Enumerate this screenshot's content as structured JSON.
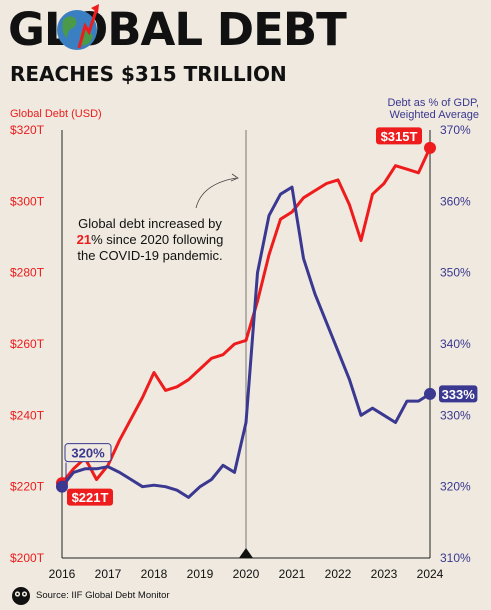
{
  "header": {
    "title": "GLOBAL DEBT",
    "subtitle": "REACHES $315 TRILLION"
  },
  "source": "Source: IIF Global Debt Monitor",
  "colors": {
    "debt": "#ee1c1c",
    "ratio": "#3a3890",
    "background": "#efe9df"
  },
  "annotation": {
    "lines": [
      "Global debt increased by",
      "% since 2020 following",
      "the COVID-19 pandemic."
    ],
    "highlight": "21"
  },
  "chart_data": {
    "type": "line",
    "ylabel_left": "Global Debt (USD)",
    "ylabel_right": [
      "Debt as % of GDP,",
      "Weighted Average"
    ],
    "x_ticks": [
      "2016",
      "2017",
      "2018",
      "2019",
      "2020",
      "2021",
      "2022",
      "2023",
      "2024"
    ],
    "x_range": [
      2016,
      2024
    ],
    "ylim_left": [
      200,
      320
    ],
    "ylim_right": [
      310,
      370
    ],
    "y_ticks_left": [
      "$200T",
      "$220T",
      "$240T",
      "$260T",
      "$280T",
      "$300T",
      "$320T"
    ],
    "y_ticks_right": [
      "310%",
      "320%",
      "330%",
      "340%",
      "350%",
      "360%",
      "370%"
    ],
    "grid": false,
    "reference_line_x": 2020,
    "series": [
      {
        "axis": "left",
        "color": "#ee1c1c",
        "x": [
          2016,
          2016.25,
          2016.5,
          2016.75,
          2017,
          2017.25,
          2017.5,
          2017.75,
          2018,
          2018.25,
          2018.5,
          2018.75,
          2019,
          2019.25,
          2019.5,
          2019.75,
          2020,
          2020.25,
          2020.5,
          2020.75,
          2021,
          2021.25,
          2021.5,
          2021.75,
          2022,
          2022.25,
          2022.5,
          2022.75,
          2023,
          2023.25,
          2023.5,
          2023.75,
          2024
        ],
        "values": [
          221,
          225,
          228,
          222,
          226,
          233,
          239,
          245,
          252,
          247,
          248,
          250,
          253,
          256,
          257,
          260,
          261,
          272,
          285,
          295,
          297,
          301,
          303,
          305,
          306,
          299,
          289,
          302,
          305,
          310,
          309,
          308,
          315
        ],
        "start_label": "$221T",
        "end_label": "$315T"
      },
      {
        "axis": "right",
        "color": "#3a3890",
        "x": [
          2016,
          2016.25,
          2016.5,
          2016.75,
          2017,
          2017.25,
          2017.5,
          2017.75,
          2018,
          2018.25,
          2018.5,
          2018.75,
          2019,
          2019.25,
          2019.5,
          2019.75,
          2020,
          2020.25,
          2020.5,
          2020.75,
          2021,
          2021.25,
          2021.5,
          2021.75,
          2022,
          2022.25,
          2022.5,
          2022.75,
          2023,
          2023.25,
          2023.5,
          2023.75,
          2024
        ],
        "values": [
          320,
          322,
          322.5,
          322.5,
          322.8,
          322,
          321,
          320,
          320.2,
          320,
          319.5,
          318.5,
          320,
          321,
          323,
          322,
          329,
          350,
          358,
          361,
          362,
          352,
          347,
          343,
          339,
          335,
          330,
          331,
          330,
          329,
          332,
          332,
          333
        ],
        "start_label": "320%",
        "end_label": "333%"
      }
    ]
  }
}
